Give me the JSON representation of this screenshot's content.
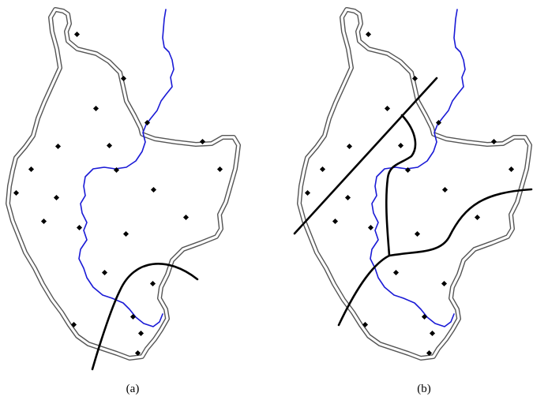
{
  "panels": [
    {
      "id": "a",
      "caption": "(a)"
    },
    {
      "id": "b",
      "caption": "(b)"
    }
  ],
  "colors": {
    "river": "#1a1ad6",
    "boundary": "#555555",
    "cut": "#000000",
    "point": "#000000"
  }
}
